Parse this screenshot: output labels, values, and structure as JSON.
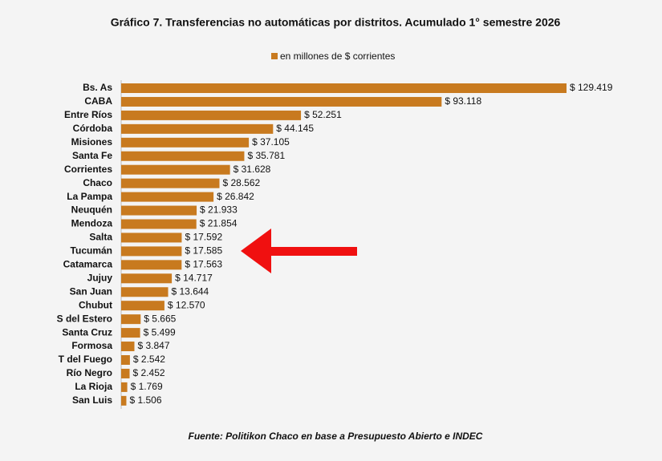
{
  "chart_data": {
    "type": "bar",
    "orientation": "horizontal",
    "title": "Gráfico 7. Transferencias no automáticas por distritos. Acumulado 1° semestre 2026",
    "legend": "en millones de $ corrientes",
    "source": "Fuente: Politikon Chaco en base a Presupuesto Abierto e INDEC",
    "color": "#c87a1f",
    "categories": [
      "Bs. As",
      "CABA",
      "Entre Ríos",
      "Córdoba",
      "Misiones",
      "Santa Fe",
      "Corrientes",
      "Chaco",
      "La Pampa",
      "Neuquén",
      "Mendoza",
      "Salta",
      "Tucumán",
      "Catamarca",
      "Jujuy",
      "San Juan",
      "Chubut",
      "S del Estero",
      "Santa Cruz",
      "Formosa",
      "T del Fuego",
      "Río Negro",
      "La Rioja",
      "San Luis"
    ],
    "values": [
      129419,
      93118,
      52251,
      44145,
      37105,
      35781,
      31628,
      28562,
      26842,
      21933,
      21854,
      17592,
      17585,
      17563,
      14717,
      13644,
      12570,
      5665,
      5499,
      3847,
      2542,
      2452,
      1769,
      1506
    ],
    "value_labels": [
      "$ 129.419",
      "$ 93.118",
      "$ 52.251",
      "$ 44.145",
      "$ 37.105",
      "$ 35.781",
      "$ 31.628",
      "$ 28.562",
      "$ 26.842",
      "$ 21.933",
      "$ 21.854",
      "$ 17.592",
      "$ 17.585",
      "$ 17.563",
      "$ 14.717",
      "$ 13.644",
      "$ 12.570",
      "$ 5.665",
      "$ 5.499",
      "$ 3.847",
      "$ 2.542",
      "$ 2.452",
      "$ 1.769",
      "$ 1.506"
    ]
  }
}
